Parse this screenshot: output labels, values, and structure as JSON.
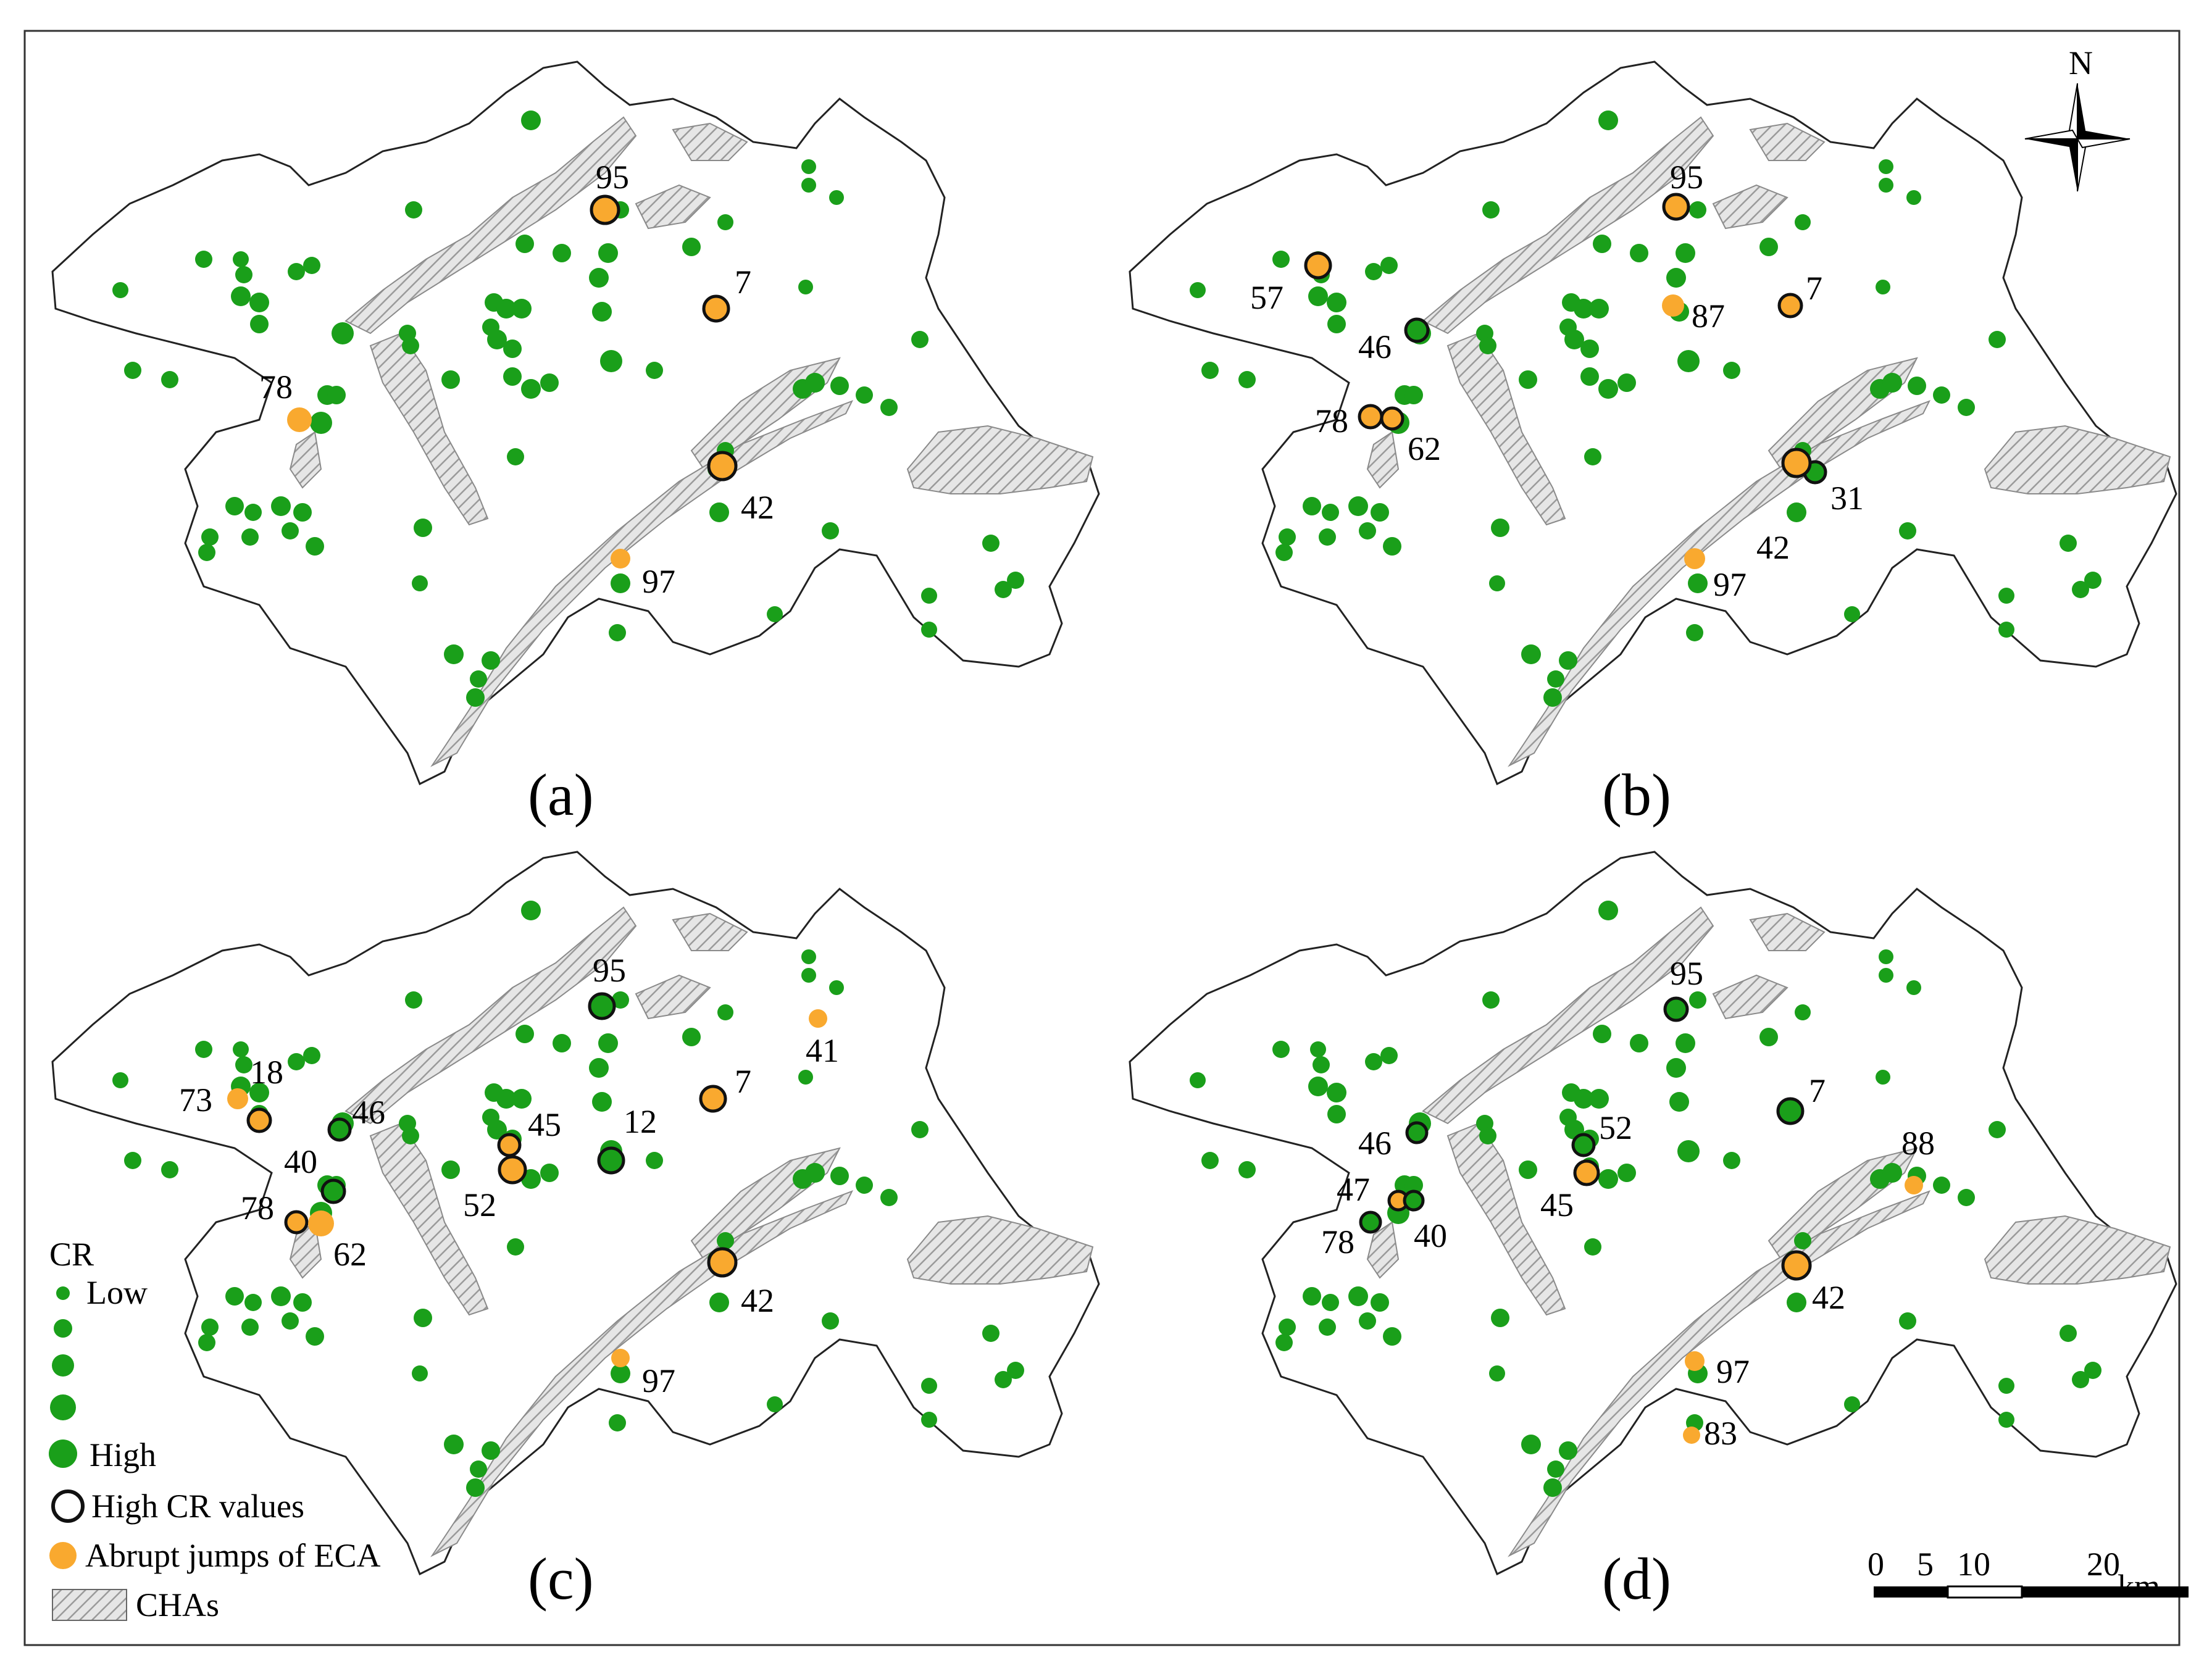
{
  "panels": [
    {
      "label": "(a)",
      "sites": [
        {
          "id": "95",
          "status": "high-cr+jump"
        },
        {
          "id": "7",
          "status": "high-cr+jump"
        },
        {
          "id": "78",
          "status": "jump"
        },
        {
          "id": "42",
          "status": "high-cr+jump"
        },
        {
          "id": "97",
          "status": "jump"
        }
      ]
    },
    {
      "label": "(b)",
      "sites": [
        {
          "id": "95",
          "status": "high-cr+jump"
        },
        {
          "id": "57",
          "status": "high-cr+jump"
        },
        {
          "id": "87",
          "status": "jump"
        },
        {
          "id": "7",
          "status": "high-cr+jump"
        },
        {
          "id": "46",
          "status": "high-cr"
        },
        {
          "id": "78",
          "status": "high-cr+jump"
        },
        {
          "id": "62",
          "status": "high-cr+jump"
        },
        {
          "id": "31",
          "status": "high-cr"
        },
        {
          "id": "42",
          "status": "high-cr+jump"
        },
        {
          "id": "97",
          "status": "jump"
        }
      ]
    },
    {
      "label": "(c)",
      "sites": [
        {
          "id": "95",
          "status": "high-cr"
        },
        {
          "id": "41",
          "status": "jump"
        },
        {
          "id": "18",
          "status": "high-cr+jump"
        },
        {
          "id": "73",
          "status": "jump"
        },
        {
          "id": "7",
          "status": "high-cr+jump"
        },
        {
          "id": "46",
          "status": "high-cr"
        },
        {
          "id": "45",
          "status": "high-cr+jump"
        },
        {
          "id": "12",
          "status": "high-cr"
        },
        {
          "id": "40",
          "status": "high-cr"
        },
        {
          "id": "52",
          "status": "high-cr+jump"
        },
        {
          "id": "78",
          "status": "high-cr+jump"
        },
        {
          "id": "62",
          "status": "jump"
        },
        {
          "id": "42",
          "status": "high-cr+jump"
        },
        {
          "id": "97",
          "status": "jump"
        }
      ]
    },
    {
      "label": "(d)",
      "sites": [
        {
          "id": "95",
          "status": "high-cr"
        },
        {
          "id": "7",
          "status": "high-cr"
        },
        {
          "id": "52",
          "status": "high-cr"
        },
        {
          "id": "46",
          "status": "high-cr"
        },
        {
          "id": "88",
          "status": "jump"
        },
        {
          "id": "45",
          "status": "high-cr+jump"
        },
        {
          "id": "47",
          "status": "high-cr+jump"
        },
        {
          "id": "78",
          "status": "high-cr"
        },
        {
          "id": "40",
          "status": "high-cr"
        },
        {
          "id": "42",
          "status": "high-cr+jump"
        },
        {
          "id": "97",
          "status": "jump"
        },
        {
          "id": "83",
          "status": "jump"
        }
      ]
    }
  ],
  "legend": {
    "title": "CR",
    "low": "Low",
    "high": "High",
    "ring": "High CR values",
    "jump": "Abrupt jumps of ECA",
    "cha": "CHAs"
  },
  "north_arrow": {
    "label": "N"
  },
  "scale_bar": {
    "ticks": [
      "0",
      "5",
      "10",
      "20"
    ],
    "unit": "km"
  },
  "colors": {
    "site": "#1a9f1a",
    "jump": "#f9a92f",
    "ring": "#111111",
    "cha_hatch": "#9a9a9a"
  }
}
